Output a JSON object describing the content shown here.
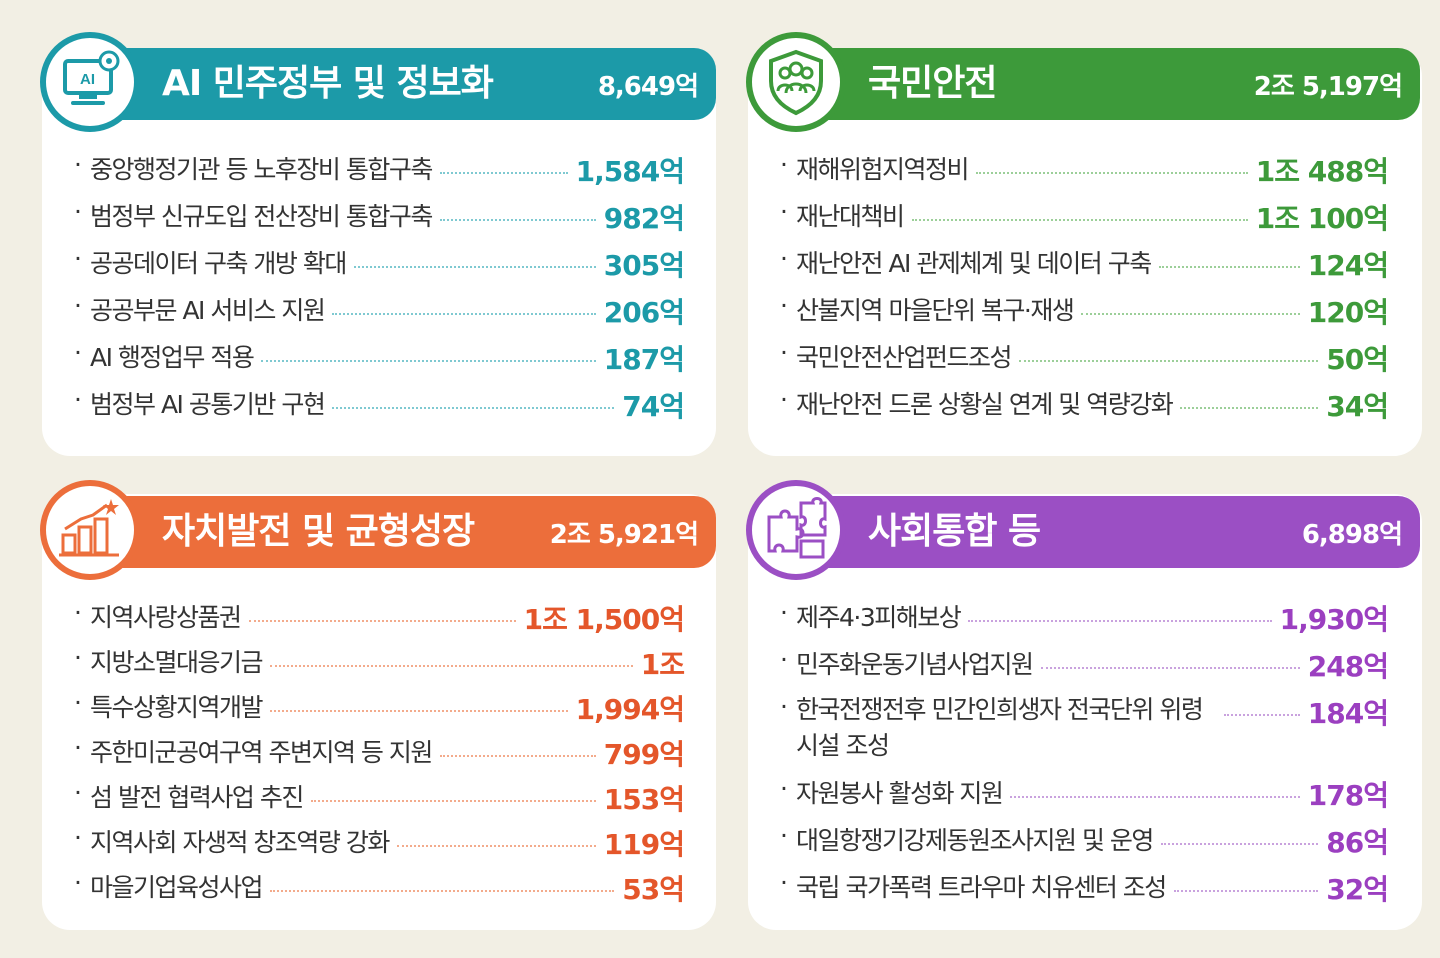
{
  "sections": [
    {
      "title": "AI 민주정부 및 정보화",
      "total": "8,649억",
      "icon": "ai-monitor-icon",
      "color": "#1c9aa8",
      "items": [
        {
          "name": "중앙행정기관 등 노후장비 통합구축",
          "amount": "1,584억"
        },
        {
          "name": "범정부 신규도입 전산장비 통합구축",
          "amount": "982억"
        },
        {
          "name": "공공데이터 구축 개방 확대",
          "amount": "305억"
        },
        {
          "name": "공공부문 AI 서비스 지원",
          "amount": "206억"
        },
        {
          "name": "AI 행정업무 적용",
          "amount": "187억"
        },
        {
          "name": "범정부 AI 공통기반 구현",
          "amount": "74억"
        }
      ]
    },
    {
      "title": "국민안전",
      "total": "2조 5,197억",
      "icon": "people-shield-icon",
      "color": "#3d9a3a",
      "items": [
        {
          "name": "재해위험지역정비",
          "amount": "1조 488억"
        },
        {
          "name": "재난대책비",
          "amount": "1조 100억"
        },
        {
          "name": "재난안전 AI 관제체계 및 데이터 구축",
          "amount": "124억"
        },
        {
          "name": "산불지역 마을단위 복구·재생",
          "amount": "120억"
        },
        {
          "name": "국민안전산업펀드조성",
          "amount": "50억"
        },
        {
          "name": "재난안전 드론 상황실 연계 및 역량강화",
          "amount": "34억"
        }
      ]
    },
    {
      "title": "자치발전 및 균형성장",
      "total": "2조 5,921억",
      "icon": "bar-growth-icon",
      "color": "#ec6e3b",
      "items": [
        {
          "name": "지역사랑상품권",
          "amount": "1조 1,500억"
        },
        {
          "name": "지방소멸대응기금",
          "amount": "1조"
        },
        {
          "name": "특수상황지역개발",
          "amount": "1,994억"
        },
        {
          "name": "주한미군공여구역 주변지역 등 지원",
          "amount": "799억"
        },
        {
          "name": "섬 발전 협력사업 추진",
          "amount": "153억"
        },
        {
          "name": "지역사회 자생적 창조역량 강화",
          "amount": "119억"
        },
        {
          "name": "마을기업육성사업",
          "amount": "53억"
        }
      ]
    },
    {
      "title": "사회통합 등",
      "total": "6,898억",
      "icon": "puzzle-icon",
      "color": "#9b4fc4",
      "items": [
        {
          "name": "제주4·3피해보상",
          "amount": "1,930억"
        },
        {
          "name": "민주화운동기념사업지원",
          "amount": "248억"
        },
        {
          "name": "한국전쟁전후 민간인희생자 전국단위 위령시설 조성",
          "amount": "184억"
        },
        {
          "name": "자원봉사 활성화 지원",
          "amount": "178억"
        },
        {
          "name": "대일항쟁기강제동원조사지원 및 운영",
          "amount": "86억"
        },
        {
          "name": "국립 국가폭력 트라우마 치유센터 조성",
          "amount": "32억"
        }
      ]
    }
  ]
}
